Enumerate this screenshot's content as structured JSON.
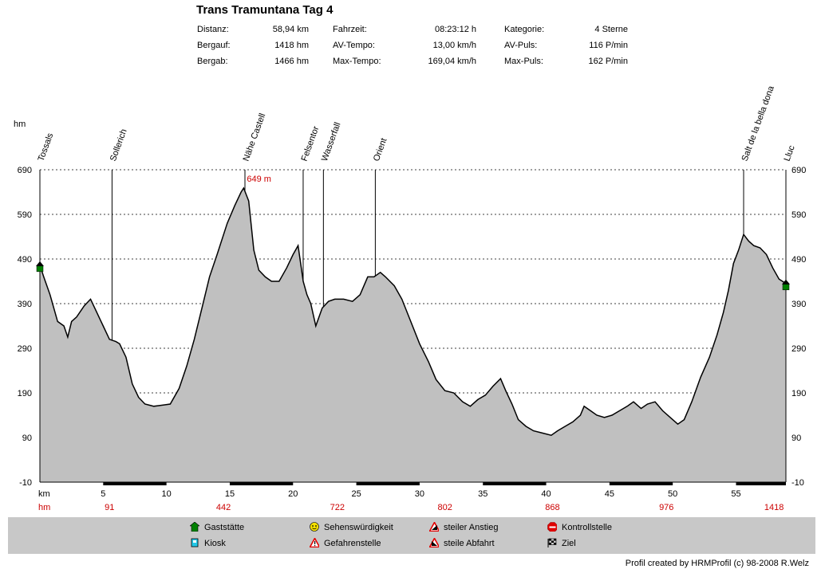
{
  "chart_data": {
    "type": "area",
    "title": "Trans Tramuntana Tag 4",
    "stats": [
      {
        "label": "Distanz:",
        "value": "58,94 km"
      },
      {
        "label": "Bergauf:",
        "value": "1418 hm"
      },
      {
        "label": "Bergab:",
        "value": "1466 hm"
      },
      {
        "label": "Fahrzeit:",
        "value": "08:23:12 h"
      },
      {
        "label": "AV-Tempo:",
        "value": "13,00 km/h"
      },
      {
        "label": "Max-Tempo:",
        "value": "169,04 km/h"
      },
      {
        "label": "Kategorie:",
        "value": "4 Sterne"
      },
      {
        "label": "AV-Puls:",
        "value": "116 P/min"
      },
      {
        "label": "Max-Puls:",
        "value": "162 P/min"
      }
    ],
    "ylabel": "hm",
    "xlabel": "km",
    "ylim": [
      -10,
      690
    ],
    "xlim": [
      0,
      58.94
    ],
    "yticks": [
      -10,
      90,
      190,
      290,
      390,
      490,
      590,
      690
    ],
    "xticks": [
      5,
      10,
      15,
      20,
      25,
      30,
      35,
      40,
      45,
      50,
      55
    ],
    "cumulative_row_label": "hm",
    "cumulative_climb": [
      {
        "km": 5.5,
        "hm": "91"
      },
      {
        "km": 14.5,
        "hm": "442"
      },
      {
        "km": 23.5,
        "hm": "722"
      },
      {
        "km": 32.0,
        "hm": "802"
      },
      {
        "km": 40.5,
        "hm": "868"
      },
      {
        "km": 49.5,
        "hm": "976"
      },
      {
        "km": 58.0,
        "hm": "1418"
      }
    ],
    "max_label": "649 m",
    "max_point": {
      "x": 16.1,
      "y": 649
    },
    "waypoints": [
      {
        "name": "Tossals",
        "km": 0
      },
      {
        "name": "Sollerich",
        "km": 5.7
      },
      {
        "name": "Nähe Castell",
        "km": 16.2
      },
      {
        "name": "Felsentor",
        "km": 20.8
      },
      {
        "name": "Wasserfall",
        "km": 22.4
      },
      {
        "name": "Orient",
        "km": 26.5
      },
      {
        "name": "Salt de la bella dona",
        "km": 55.6
      },
      {
        "name": "Lluc",
        "km": 58.94
      }
    ],
    "series": [
      {
        "x": [
          0,
          0.3,
          0.8,
          1.4,
          1.9,
          2.2,
          2.5,
          2.9,
          3.5,
          4.0,
          4.5,
          5.0,
          5.5,
          6.0,
          6.3,
          6.8,
          7.3,
          7.8,
          8.3,
          9.0,
          9.8,
          10.3,
          11.0,
          11.6,
          12.2,
          12.8,
          13.4,
          14.0,
          14.8,
          15.4,
          15.9,
          16.1,
          16.5,
          16.9,
          17.3,
          17.8,
          18.3,
          18.9,
          19.5,
          20.0,
          20.4,
          20.8,
          21.1,
          21.4,
          21.8,
          22.3,
          22.8,
          23.3,
          24.0,
          24.7,
          25.3,
          25.9,
          26.4,
          26.9,
          27.3,
          28.0,
          28.6,
          29.3,
          30.0,
          30.7,
          31.3,
          32.0,
          32.7,
          33.4,
          34.0,
          34.6,
          35.2,
          35.8,
          36.4,
          36.8,
          37.3,
          37.8,
          38.4,
          39.0,
          39.7,
          40.4,
          40.9,
          41.5,
          42.1,
          42.7,
          43.0,
          43.5,
          44.0,
          44.6,
          45.2,
          45.8,
          46.4,
          46.9,
          47.5,
          48.0,
          48.6,
          49.2,
          49.8,
          50.4,
          50.9,
          51.5,
          52.2,
          52.9,
          53.5,
          54.0,
          54.4,
          54.8,
          55.2,
          55.6,
          56.0,
          56.4,
          56.9,
          57.4,
          57.9,
          58.4,
          58.94
        ],
        "y": [
          476,
          450,
          410,
          350,
          340,
          315,
          350,
          360,
          385,
          400,
          370,
          340,
          310,
          305,
          300,
          270,
          210,
          180,
          165,
          160,
          163,
          165,
          200,
          250,
          310,
          380,
          450,
          500,
          570,
          610,
          640,
          649,
          620,
          510,
          465,
          450,
          440,
          440,
          470,
          500,
          520,
          440,
          410,
          390,
          340,
          380,
          395,
          400,
          400,
          395,
          410,
          450,
          450,
          460,
          450,
          430,
          400,
          350,
          300,
          260,
          220,
          195,
          190,
          170,
          160,
          175,
          185,
          205,
          222,
          195,
          165,
          130,
          115,
          105,
          100,
          95,
          105,
          115,
          125,
          140,
          160,
          150,
          140,
          135,
          140,
          150,
          160,
          170,
          155,
          165,
          170,
          150,
          135,
          120,
          130,
          170,
          225,
          270,
          320,
          370,
          420,
          480,
          510,
          545,
          530,
          520,
          515,
          500,
          470,
          445,
          435
        ]
      }
    ]
  },
  "legend": [
    {
      "icon": "gaststaette-icon",
      "label": "Gaststätte"
    },
    {
      "icon": "kiosk-icon",
      "label": "Kiosk"
    },
    {
      "icon": "sehenswuerdigkeit-icon",
      "label": "Sehenswürdigkeit"
    },
    {
      "icon": "gefahrenstelle-icon",
      "label": "Gefahrenstelle"
    },
    {
      "icon": "steiler-anstieg-icon",
      "label": "steiler Anstieg"
    },
    {
      "icon": "steile-abfahrt-icon",
      "label": "steile Abfahrt"
    },
    {
      "icon": "kontrollstelle-icon",
      "label": "Kontrollstelle"
    },
    {
      "icon": "ziel-icon",
      "label": "Ziel"
    }
  ],
  "credit": "Profil created by HRMProfil (c) 98-2008 R.Welz",
  "colors": {
    "area": "#c0c0c0",
    "line": "#000000",
    "accent": "#cc0000",
    "gaststaette": "#008000"
  }
}
